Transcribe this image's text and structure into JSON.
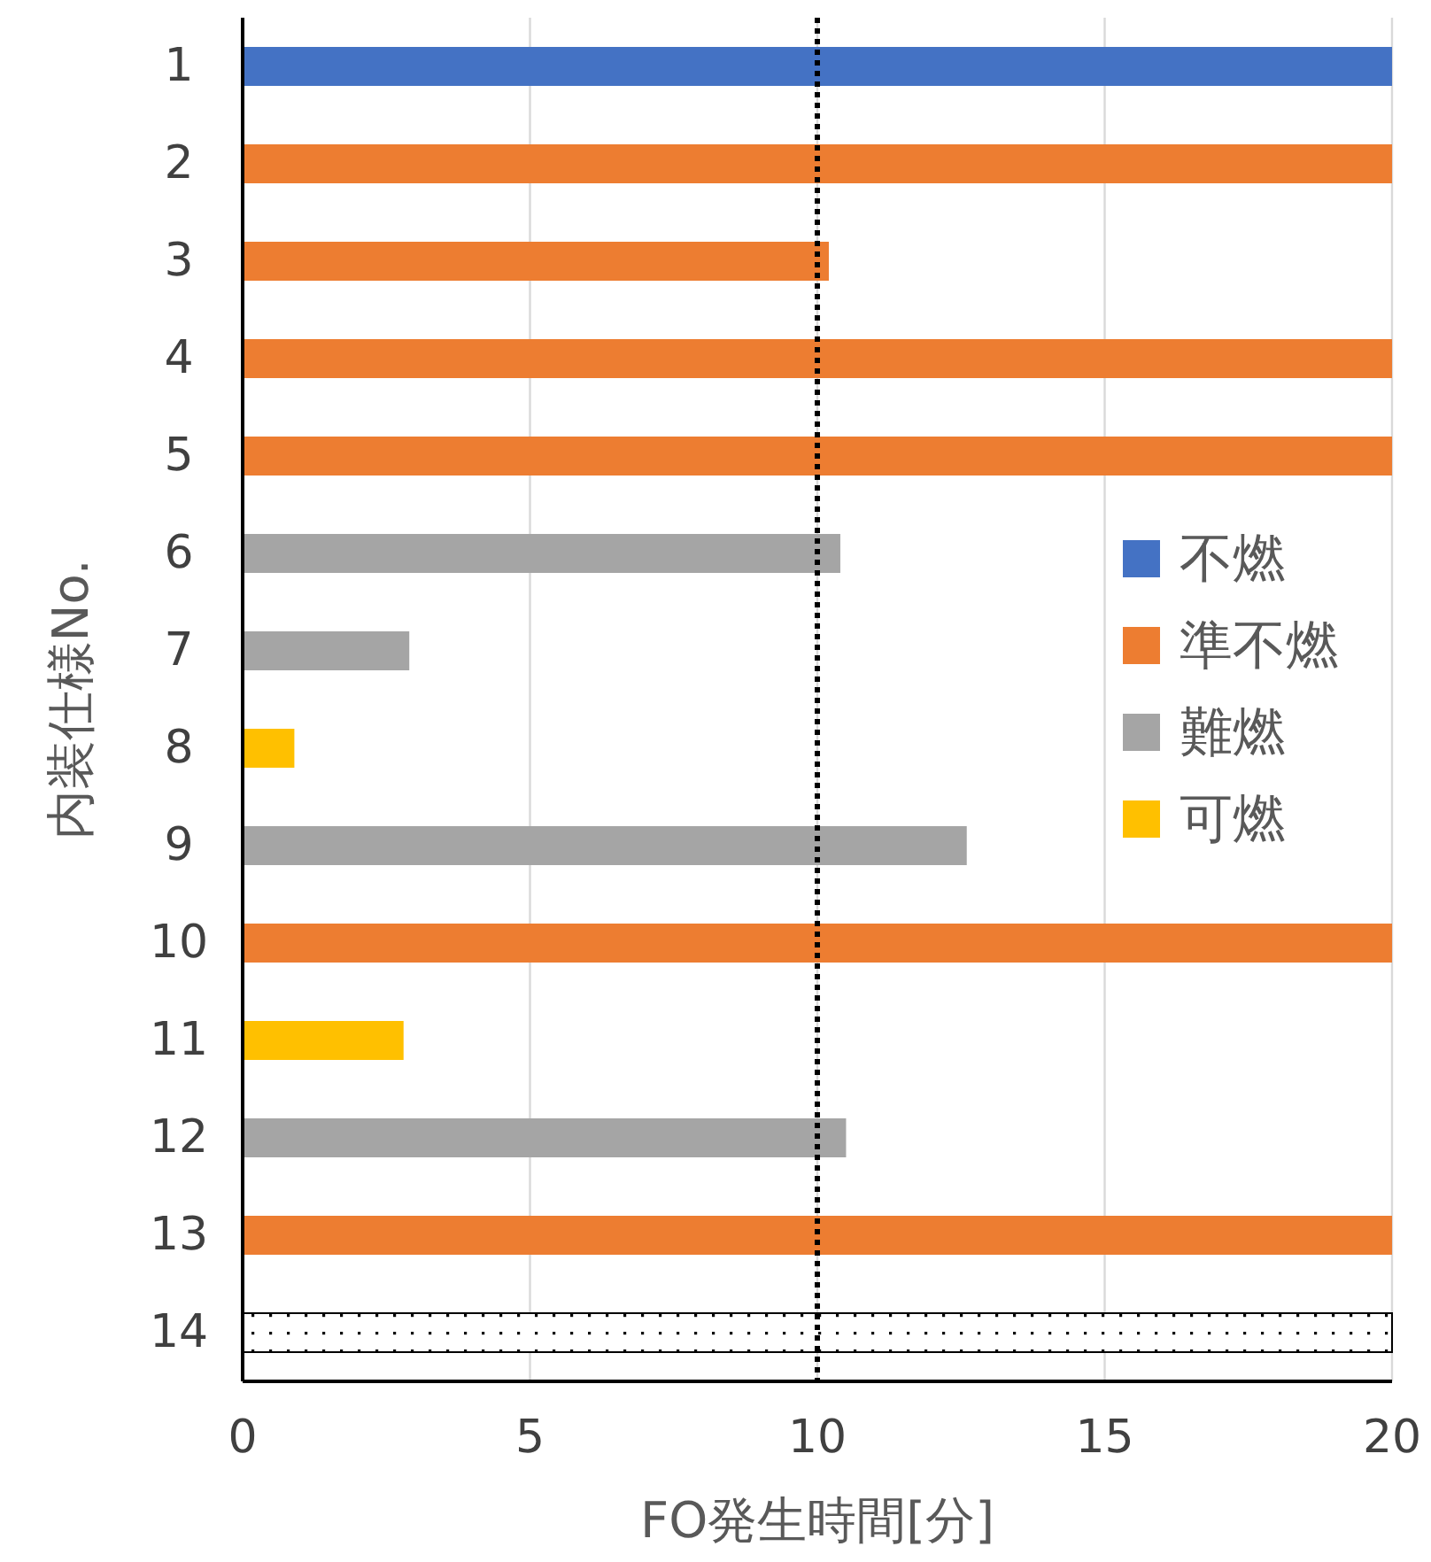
{
  "chart_data": {
    "type": "bar",
    "orientation": "horizontal",
    "categories": [
      "1",
      "2",
      "3",
      "4",
      "5",
      "6",
      "7",
      "8",
      "9",
      "10",
      "11",
      "12",
      "13",
      "14"
    ],
    "series": [
      {
        "name": "不燃",
        "color": "#4472c4",
        "values": [
          20,
          null,
          null,
          null,
          null,
          null,
          null,
          null,
          null,
          null,
          null,
          null,
          null,
          null
        ]
      },
      {
        "name": "準不燃",
        "color": "#ed7d31",
        "values": [
          null,
          20,
          10.2,
          20,
          20,
          null,
          null,
          null,
          null,
          20,
          null,
          null,
          20,
          null
        ]
      },
      {
        "name": "難燃",
        "color": "#a5a5a5",
        "values": [
          null,
          null,
          null,
          null,
          null,
          10.4,
          2.9,
          null,
          12.6,
          null,
          null,
          10.5,
          null,
          null
        ]
      },
      {
        "name": "可燃",
        "color": "#ffc000",
        "values": [
          null,
          null,
          null,
          null,
          null,
          null,
          null,
          0.9,
          null,
          null,
          2.8,
          null,
          null,
          null
        ]
      },
      {
        "color": "#ffffff",
        "values": [
          null,
          null,
          null,
          null,
          null,
          null,
          null,
          null,
          null,
          null,
          null,
          null,
          null,
          20
        ]
      }
    ],
    "xlim": [
      0,
      20
    ],
    "xticks": [
      0,
      5,
      10,
      15,
      20
    ],
    "grid": "x",
    "xlabel": "FO発生時間[分]",
    "ylabel": "内装仕様No.",
    "ref_lines": [
      {
        "axis": "x",
        "value": 10,
        "color": "#000000",
        "line_style": "dotted"
      }
    ],
    "legend": "right"
  }
}
